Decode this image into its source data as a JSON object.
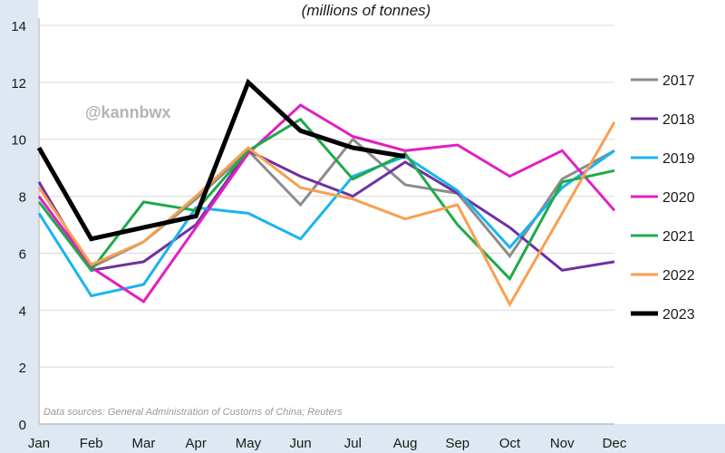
{
  "chart_data": {
    "type": "line",
    "subtitle": "(millions of tonnes)",
    "watermark": "@kannbwx",
    "source_note": "Data sources: General Administration of Customs of China; Reuters",
    "categories": [
      "Jan",
      "Feb",
      "Mar",
      "Apr",
      "May",
      "Jun",
      "Jul",
      "Aug",
      "Sep",
      "Oct",
      "Nov",
      "Dec"
    ],
    "ylim": [
      0,
      14
    ],
    "yticks": [
      0,
      2,
      4,
      6,
      8,
      10,
      12,
      14
    ],
    "grid": "horizontal",
    "legend_position": "right",
    "series": [
      {
        "name": "2017",
        "color": "#8c8c8c",
        "width": 3,
        "values": [
          8.0,
          5.5,
          6.4,
          7.9,
          9.6,
          7.7,
          10.0,
          8.4,
          8.1,
          5.9,
          8.6,
          9.6
        ]
      },
      {
        "name": "2018",
        "color": "#7030a0",
        "width": 3,
        "values": [
          8.5,
          5.4,
          5.7,
          7.0,
          9.6,
          8.7,
          8.0,
          9.2,
          8.1,
          6.9,
          5.4,
          5.7
        ]
      },
      {
        "name": "2019",
        "color": "#18b4f0",
        "width": 3,
        "values": [
          7.4,
          4.5,
          4.9,
          7.6,
          7.4,
          6.5,
          8.7,
          9.4,
          8.2,
          6.2,
          8.3,
          9.6
        ]
      },
      {
        "name": "2020",
        "color": "#e020c0",
        "width": 3,
        "values": [
          8.0,
          5.5,
          4.3,
          6.9,
          9.5,
          11.2,
          10.1,
          9.6,
          9.8,
          8.7,
          9.6,
          7.5
        ]
      },
      {
        "name": "2021",
        "color": "#1faa4a",
        "width": 3,
        "values": [
          7.8,
          5.4,
          7.8,
          7.5,
          9.6,
          10.7,
          8.6,
          9.5,
          7.0,
          5.1,
          8.5,
          8.9
        ]
      },
      {
        "name": "2022",
        "color": "#f7a050",
        "width": 3,
        "values": [
          8.3,
          5.6,
          6.4,
          8.0,
          9.7,
          8.3,
          7.9,
          7.2,
          7.7,
          4.2,
          7.4,
          10.6
        ]
      },
      {
        "name": "2023",
        "color": "#000000",
        "width": 5,
        "values": [
          9.7,
          6.5,
          6.9,
          7.3,
          12.0,
          10.3,
          9.7,
          9.4,
          null,
          null,
          null,
          null
        ]
      }
    ]
  }
}
